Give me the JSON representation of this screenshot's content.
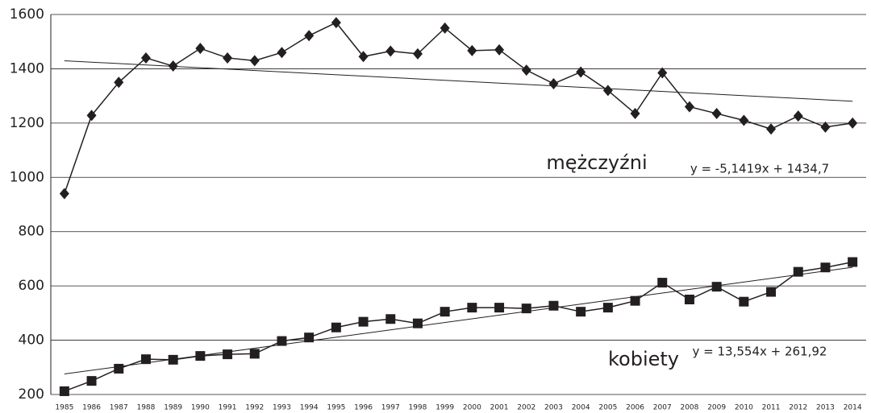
{
  "chart_data": {
    "type": "line",
    "categories": [
      "1985",
      "1986",
      "1987",
      "1988",
      "1989",
      "1990",
      "1991",
      "1992",
      "1993",
      "1994",
      "1995",
      "1996",
      "1997",
      "1998",
      "1999",
      "2000",
      "2001",
      "2002",
      "2003",
      "2004",
      "2005",
      "2006",
      "2007",
      "2008",
      "2009",
      "2010",
      "2011",
      "2012",
      "2013",
      "2014"
    ],
    "series": [
      {
        "name": "mężczyźni",
        "color": "#231f20",
        "marker": "diamond",
        "values": [
          940,
          1228,
          1350,
          1440,
          1410,
          1475,
          1440,
          1430,
          1460,
          1522,
          1570,
          1445,
          1465,
          1455,
          1550,
          1467,
          1470,
          1395,
          1345,
          1388,
          1320,
          1235,
          1385,
          1260,
          1235,
          1210,
          1178,
          1226,
          1185,
          1200
        ],
        "trend": {
          "label": "y = -5,1419x + 1434,7",
          "slope": -5.1419,
          "intercept": 1434.7
        }
      },
      {
        "name": "kobiety",
        "color": "#231f20",
        "marker": "square",
        "values": [
          212,
          250,
          295,
          330,
          328,
          342,
          348,
          350,
          397,
          410,
          447,
          468,
          478,
          462,
          505,
          520,
          520,
          517,
          527,
          505,
          520,
          545,
          612,
          550,
          597,
          542,
          578,
          652,
          668,
          688
        ],
        "trend": {
          "label": "y = 13,554x + 261,92",
          "slope": 13.554,
          "intercept": 261.92
        }
      }
    ],
    "ylim": [
      200,
      1600
    ],
    "yticks": [
      200,
      400,
      600,
      800,
      1000,
      1200,
      1400,
      1600
    ],
    "grid": true
  }
}
